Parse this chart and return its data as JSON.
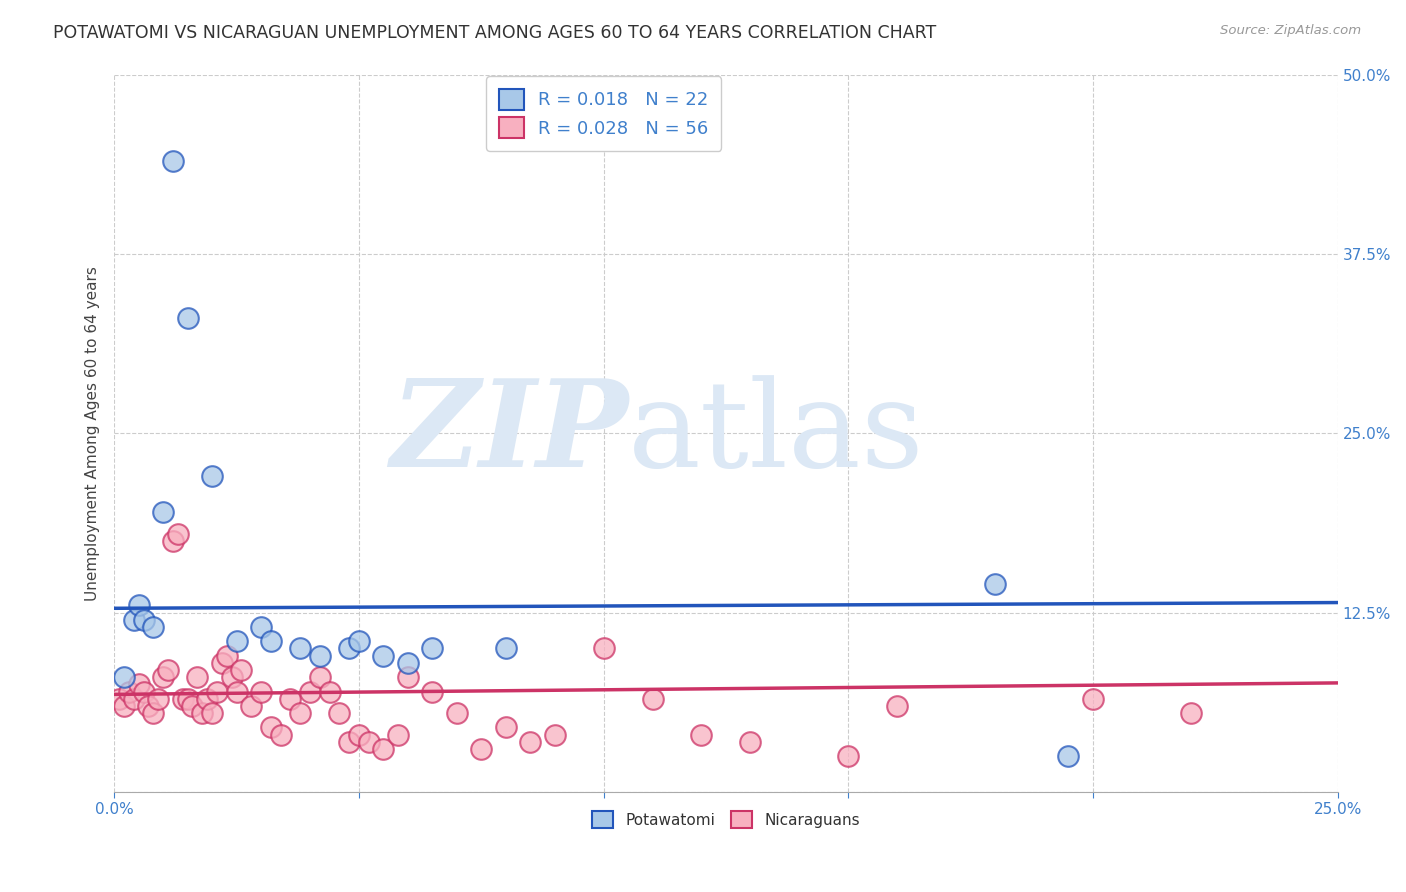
{
  "title": "POTAWATOMI VS NICARAGUAN UNEMPLOYMENT AMONG AGES 60 TO 64 YEARS CORRELATION CHART",
  "source": "Source: ZipAtlas.com",
  "xlabel": "",
  "ylabel": "Unemployment Among Ages 60 to 64 years",
  "xlim": [
    0.0,
    0.25
  ],
  "ylim": [
    0.0,
    0.5
  ],
  "xticks": [
    0.0,
    0.05,
    0.1,
    0.15,
    0.2,
    0.25
  ],
  "xtick_labels": [
    "0.0%",
    "",
    "",
    "",
    "",
    "25.0%"
  ],
  "yticks": [
    0.0,
    0.125,
    0.25,
    0.375,
    0.5
  ],
  "ytick_labels": [
    "",
    "12.5%",
    "25.0%",
    "37.5%",
    "50.0%"
  ],
  "blue_R": 0.018,
  "blue_N": 22,
  "pink_R": 0.028,
  "pink_N": 56,
  "blue_color": "#a8c8e8",
  "pink_color": "#f8b0c0",
  "blue_line_color": "#2255bb",
  "pink_line_color": "#cc3366",
  "blue_scatter": [
    [
      0.002,
      0.08
    ],
    [
      0.004,
      0.12
    ],
    [
      0.005,
      0.13
    ],
    [
      0.006,
      0.12
    ],
    [
      0.008,
      0.115
    ],
    [
      0.01,
      0.195
    ],
    [
      0.012,
      0.44
    ],
    [
      0.015,
      0.33
    ],
    [
      0.02,
      0.22
    ],
    [
      0.025,
      0.105
    ],
    [
      0.03,
      0.115
    ],
    [
      0.032,
      0.105
    ],
    [
      0.038,
      0.1
    ],
    [
      0.042,
      0.095
    ],
    [
      0.048,
      0.1
    ],
    [
      0.05,
      0.105
    ],
    [
      0.055,
      0.095
    ],
    [
      0.06,
      0.09
    ],
    [
      0.065,
      0.1
    ],
    [
      0.08,
      0.1
    ],
    [
      0.18,
      0.145
    ],
    [
      0.195,
      0.025
    ]
  ],
  "pink_scatter": [
    [
      0.001,
      0.065
    ],
    [
      0.002,
      0.06
    ],
    [
      0.003,
      0.07
    ],
    [
      0.004,
      0.065
    ],
    [
      0.005,
      0.075
    ],
    [
      0.006,
      0.07
    ],
    [
      0.007,
      0.06
    ],
    [
      0.008,
      0.055
    ],
    [
      0.009,
      0.065
    ],
    [
      0.01,
      0.08
    ],
    [
      0.011,
      0.085
    ],
    [
      0.012,
      0.175
    ],
    [
      0.013,
      0.18
    ],
    [
      0.014,
      0.065
    ],
    [
      0.015,
      0.065
    ],
    [
      0.016,
      0.06
    ],
    [
      0.017,
      0.08
    ],
    [
      0.018,
      0.055
    ],
    [
      0.019,
      0.065
    ],
    [
      0.02,
      0.055
    ],
    [
      0.021,
      0.07
    ],
    [
      0.022,
      0.09
    ],
    [
      0.023,
      0.095
    ],
    [
      0.024,
      0.08
    ],
    [
      0.025,
      0.07
    ],
    [
      0.026,
      0.085
    ],
    [
      0.028,
      0.06
    ],
    [
      0.03,
      0.07
    ],
    [
      0.032,
      0.045
    ],
    [
      0.034,
      0.04
    ],
    [
      0.036,
      0.065
    ],
    [
      0.038,
      0.055
    ],
    [
      0.04,
      0.07
    ],
    [
      0.042,
      0.08
    ],
    [
      0.044,
      0.07
    ],
    [
      0.046,
      0.055
    ],
    [
      0.048,
      0.035
    ],
    [
      0.05,
      0.04
    ],
    [
      0.052,
      0.035
    ],
    [
      0.055,
      0.03
    ],
    [
      0.058,
      0.04
    ],
    [
      0.06,
      0.08
    ],
    [
      0.065,
      0.07
    ],
    [
      0.07,
      0.055
    ],
    [
      0.075,
      0.03
    ],
    [
      0.08,
      0.045
    ],
    [
      0.085,
      0.035
    ],
    [
      0.09,
      0.04
    ],
    [
      0.1,
      0.1
    ],
    [
      0.11,
      0.065
    ],
    [
      0.12,
      0.04
    ],
    [
      0.13,
      0.035
    ],
    [
      0.15,
      0.025
    ],
    [
      0.16,
      0.06
    ],
    [
      0.2,
      0.065
    ],
    [
      0.22,
      0.055
    ]
  ],
  "watermark_line1": "ZIP",
  "watermark_line2": "atlas",
  "watermark_color": "#dce8f5",
  "background_color": "#ffffff",
  "grid_color": "#cccccc",
  "axis_label_color": "#4080cc",
  "title_fontsize": 12.5,
  "legend_fontsize": 13,
  "label_fontsize": 11
}
